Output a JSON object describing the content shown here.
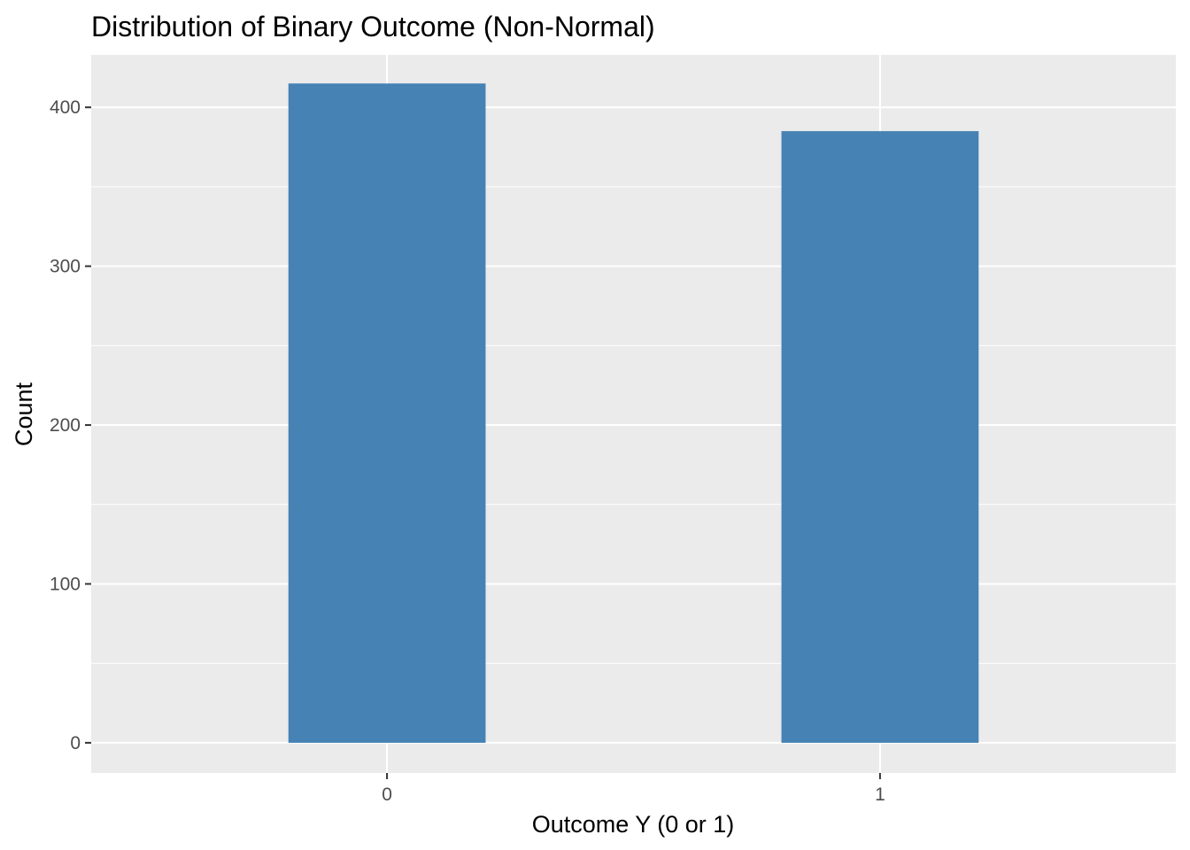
{
  "chart_data": {
    "type": "bar",
    "title": "Distribution of Binary Outcome (Non-Normal)",
    "xlabel": "Outcome Y (0 or 1)",
    "ylabel": "Count",
    "categories": [
      "0",
      "1"
    ],
    "values": [
      415,
      385
    ],
    "ylim": [
      -19,
      433
    ],
    "y_ticks": [
      0,
      100,
      200,
      300,
      400
    ],
    "y_tick_labels": [
      "0",
      "100",
      "200",
      "300",
      "400"
    ],
    "grid": true,
    "legend": "none",
    "colors": {
      "bar": "#4682b4",
      "panel_background": "#ebebeb",
      "grid": "#ffffff",
      "tick_text": "#4d4d4d",
      "tick_mark": "#333333"
    }
  }
}
